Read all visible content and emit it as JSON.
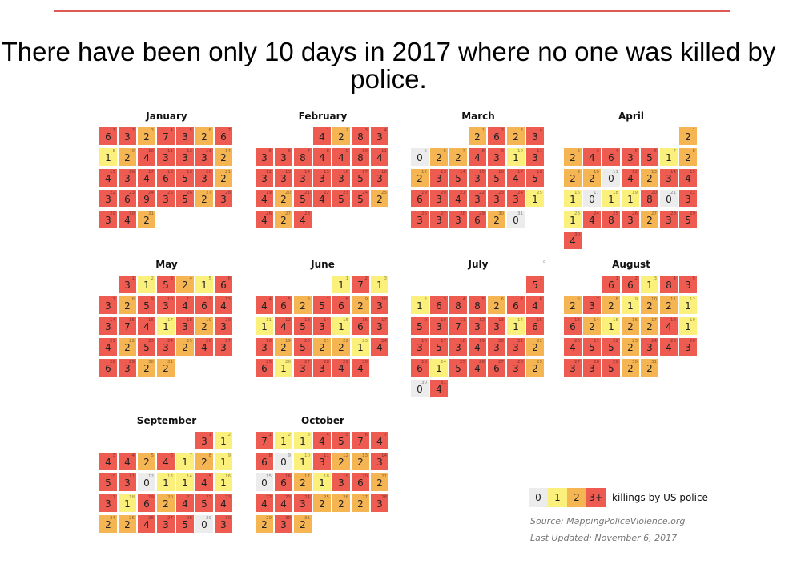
{
  "title": "There have been only 10 days in 2017 where no one was killed by police.",
  "colors": {
    "zero": "#ececec",
    "one": "#fbf07b",
    "two": "#f6b553",
    "three_plus": "#ee5b51"
  },
  "legend": {
    "items": [
      "0",
      "1",
      "2",
      "3+"
    ],
    "text": "killings by US police"
  },
  "source": "Source: MappingPoliceViolence.org",
  "updated": "Last Updated: November 6, 2017",
  "stray_label": "8",
  "chart_data": {
    "type": "heatmap",
    "title": "There have been only 10 days in 2017 where no one was killed by police.",
    "legend": [
      "0",
      "1",
      "2",
      "3+"
    ],
    "legend_label": "killings by US police",
    "months": [
      {
        "name": "January",
        "start": 0,
        "counts": [
          6,
          3,
          2,
          7,
          3,
          2,
          6,
          1,
          2,
          4,
          3,
          3,
          3,
          2,
          4,
          3,
          4,
          6,
          5,
          3,
          2,
          3,
          6,
          9,
          3,
          5,
          2,
          3,
          3,
          4,
          2
        ]
      },
      {
        "name": "February",
        "start": 3,
        "counts": [
          4,
          2,
          8,
          3,
          3,
          3,
          8,
          4,
          4,
          8,
          4,
          3,
          3,
          3,
          3,
          3,
          5,
          3,
          4,
          2,
          5,
          4,
          5,
          5,
          2,
          4,
          2,
          4
        ]
      },
      {
        "name": "March",
        "start": 3,
        "counts": [
          2,
          6,
          2,
          3,
          0,
          2,
          2,
          4,
          3,
          1,
          3,
          2,
          3,
          5,
          3,
          5,
          4,
          5,
          6,
          3,
          4,
          3,
          3,
          3,
          1,
          3,
          3,
          3,
          6,
          2,
          0
        ]
      },
      {
        "name": "April",
        "start": 6,
        "counts": [
          2,
          2,
          4,
          6,
          3,
          5,
          1,
          2,
          2,
          2,
          0,
          4,
          2,
          3,
          4,
          1,
          0,
          1,
          1,
          8,
          0,
          3,
          1,
          4,
          8,
          3,
          2,
          3,
          5,
          4
        ]
      },
      {
        "name": "May",
        "start": 1,
        "counts": [
          3,
          1,
          5,
          2,
          1,
          6,
          3,
          2,
          5,
          3,
          4,
          6,
          4,
          3,
          7,
          4,
          1,
          3,
          2,
          3,
          4,
          2,
          5,
          3,
          2,
          4,
          3,
          6,
          3,
          2,
          2
        ]
      },
      {
        "name": "June",
        "start": 4,
        "counts": [
          1,
          7,
          1,
          4,
          6,
          2,
          5,
          6,
          2,
          3,
          1,
          4,
          5,
          3,
          1,
          6,
          3,
          3,
          2,
          5,
          2,
          2,
          1,
          4,
          6,
          1,
          3,
          3,
          4,
          4
        ]
      },
      {
        "name": "July",
        "start": 6,
        "counts": [
          5,
          1,
          6,
          8,
          8,
          2,
          6,
          4,
          5,
          3,
          7,
          3,
          3,
          1,
          6,
          3,
          5,
          3,
          4,
          3,
          3,
          2,
          6,
          1,
          5,
          4,
          6,
          3,
          2,
          0,
          4
        ]
      },
      {
        "name": "August",
        "start": 2,
        "counts": [
          6,
          6,
          1,
          8,
          3,
          2,
          3,
          2,
          1,
          2,
          2,
          1,
          6,
          2,
          1,
          2,
          2,
          4,
          1,
          4,
          5,
          5,
          2,
          3,
          4,
          3,
          3,
          3,
          5,
          2,
          2
        ]
      },
      {
        "name": "September",
        "start": 5,
        "counts": [
          3,
          1,
          4,
          4,
          2,
          4,
          1,
          2,
          1,
          5,
          3,
          0,
          1,
          1,
          4,
          1,
          3,
          1,
          6,
          2,
          4,
          5,
          4,
          2,
          2,
          4,
          3,
          5,
          0,
          3
        ]
      },
      {
        "name": "October",
        "start": 0,
        "counts": [
          7,
          1,
          1,
          4,
          5,
          7,
          4,
          6,
          0,
          1,
          3,
          2,
          2,
          3,
          0,
          6,
          2,
          1,
          3,
          6,
          2,
          4,
          4,
          3,
          2,
          2,
          2,
          3,
          2,
          3,
          2
        ]
      }
    ]
  }
}
